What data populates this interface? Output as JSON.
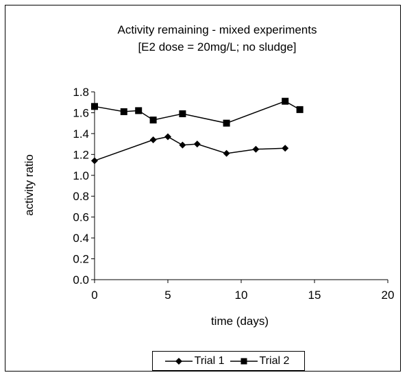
{
  "chart_data": {
    "type": "line",
    "title": "Activity remaining - mixed experiments",
    "subtitle": "[E2 dose = 20mg/L; no sludge]",
    "xlabel": "time (days)",
    "ylabel": "activity ratio",
    "xlim": [
      0,
      20
    ],
    "ylim": [
      0,
      1.8
    ],
    "x_ticks": [
      0,
      5,
      10,
      15,
      20
    ],
    "y_ticks": [
      0.0,
      0.2,
      0.4,
      0.6,
      0.8,
      1.0,
      1.2,
      1.4,
      1.6,
      1.8
    ],
    "x_tick_labels": [
      "0",
      "5",
      "10",
      "15",
      "20"
    ],
    "y_tick_labels": [
      "0.0",
      "0.2",
      "0.4",
      "0.6",
      "0.8",
      "1.0",
      "1.2",
      "1.4",
      "1.6",
      "1.8"
    ],
    "grid": false,
    "legend_position": "bottom",
    "series": [
      {
        "name": "Trial 1",
        "marker": "diamond",
        "color": "#000000",
        "x": [
          0,
          4,
          5,
          6,
          7,
          9,
          11,
          13
        ],
        "y": [
          1.14,
          1.34,
          1.37,
          1.29,
          1.3,
          1.21,
          1.25,
          1.26
        ]
      },
      {
        "name": "Trial 2",
        "marker": "square",
        "color": "#000000",
        "x": [
          0,
          2,
          3,
          4,
          6,
          9,
          13,
          14
        ],
        "y": [
          1.66,
          1.61,
          1.62,
          1.53,
          1.59,
          1.5,
          1.71,
          1.63
        ]
      }
    ]
  }
}
